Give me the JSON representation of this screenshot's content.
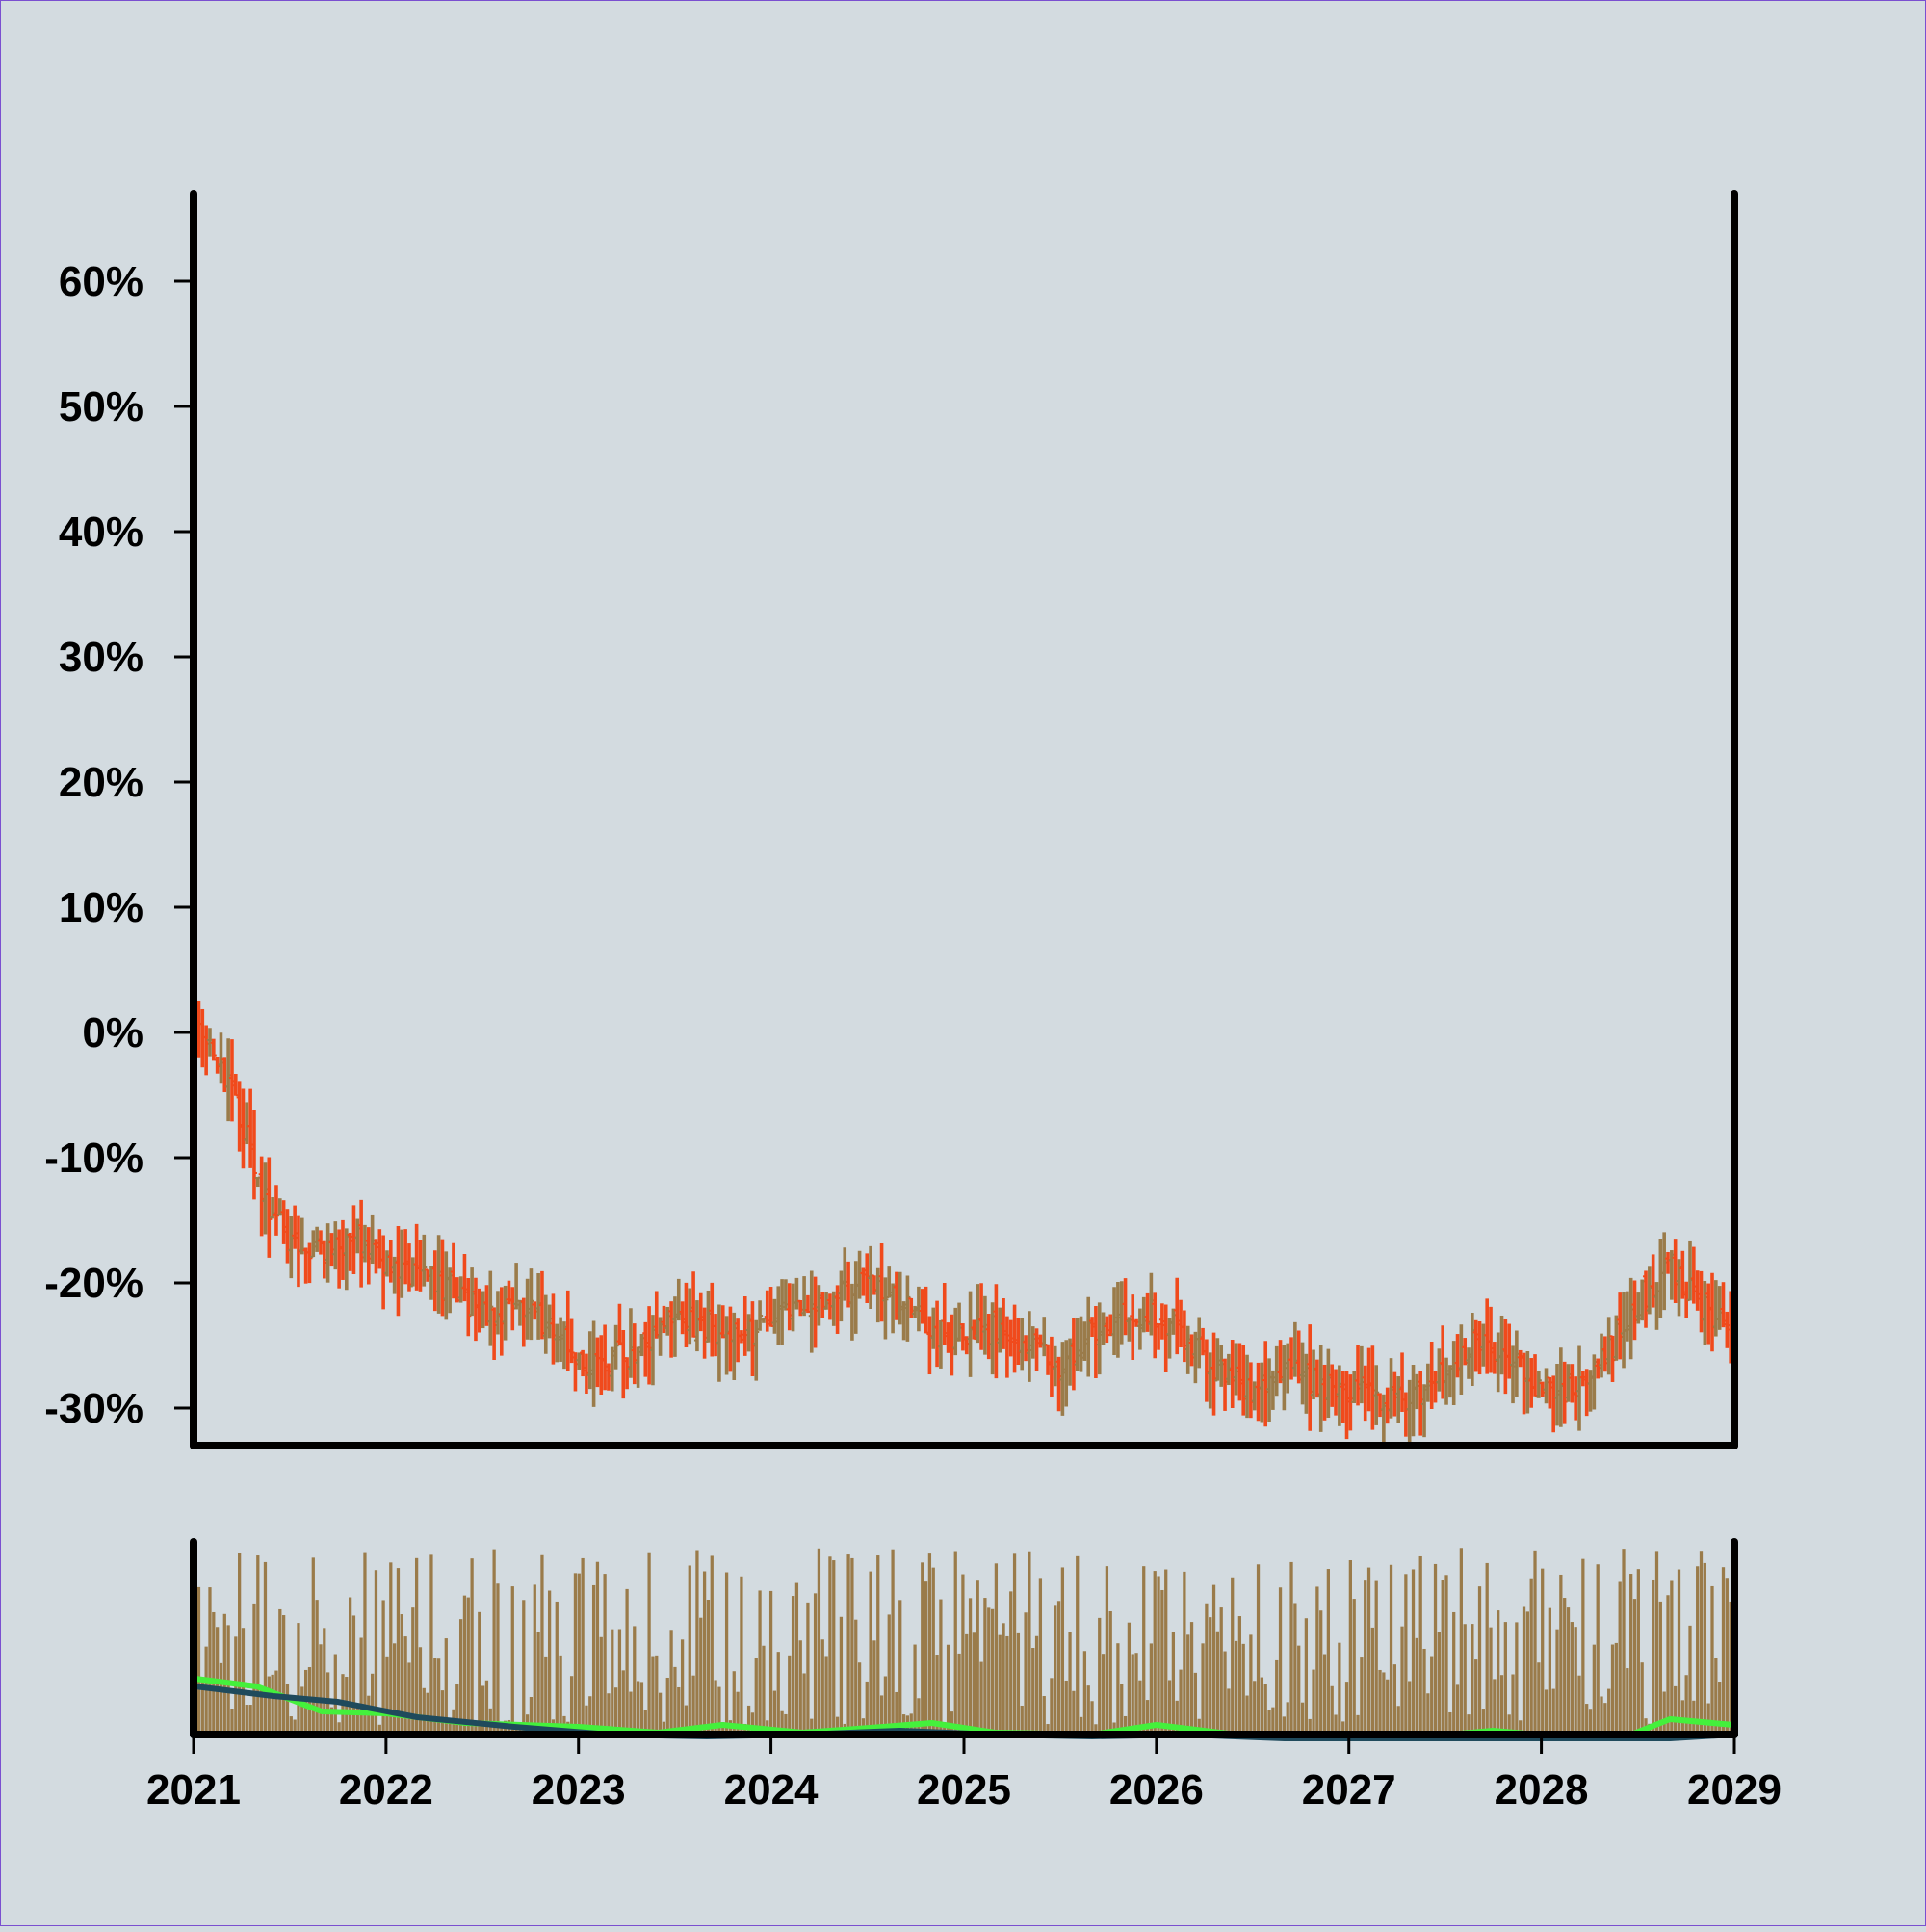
{
  "colors": {
    "background": "#d3dbe0",
    "frame": "#7a4fd0",
    "axis": "#000000",
    "ohlc_up": "#9a7b4a",
    "ohlc_down": "#f04a1c",
    "volume": "#9a7b4a",
    "ma_fast": "#44f03c",
    "ma_slow": "#1f4a5c"
  },
  "chart_data": [
    {
      "type": "ohlc",
      "x_type": "date",
      "y_unit": "%",
      "y_ticks": [
        "60%",
        "50%",
        "40%",
        "30%",
        "20%",
        "10%",
        "0%",
        "-10%",
        "-20%",
        "-30%"
      ],
      "y_tick_values": [
        60,
        50,
        40,
        30,
        20,
        10,
        0,
        -10,
        -20,
        -30
      ],
      "ylim": [
        -33,
        67
      ],
      "xlim": [
        "2021-01-01",
        "2029-01-01"
      ],
      "grid": false,
      "frequency": "weekly",
      "start": "2021-01-04",
      "trend": [
        [
          "2021-01-04",
          0.5
        ],
        [
          "2021-02-15",
          -2
        ],
        [
          "2021-04-01",
          -7
        ],
        [
          "2021-05-15",
          -13
        ],
        [
          "2021-07-01",
          -17
        ],
        [
          "2021-09-01",
          -17.5
        ],
        [
          "2021-11-01",
          -16.5
        ],
        [
          "2022-01-01",
          -18.5
        ],
        [
          "2022-03-01",
          -19.5
        ],
        [
          "2022-05-01",
          -20.5
        ],
        [
          "2022-07-01",
          -22.5
        ],
        [
          "2022-09-01",
          -22
        ],
        [
          "2022-11-01",
          -23
        ],
        [
          "2023-01-01",
          -26
        ],
        [
          "2023-03-01",
          -26.5
        ],
        [
          "2023-05-01",
          -25
        ],
        [
          "2023-07-01",
          -22.5
        ],
        [
          "2023-09-01",
          -23.5
        ],
        [
          "2023-11-01",
          -24.5
        ],
        [
          "2024-01-01",
          -23
        ],
        [
          "2024-03-01",
          -22
        ],
        [
          "2024-05-01",
          -21
        ],
        [
          "2024-07-01",
          -20
        ],
        [
          "2024-09-01",
          -21.5
        ],
        [
          "2024-11-01",
          -24
        ],
        [
          "2025-01-01",
          -24.5
        ],
        [
          "2025-03-01",
          -23.5
        ],
        [
          "2025-05-01",
          -25
        ],
        [
          "2025-07-01",
          -26.5
        ],
        [
          "2025-09-01",
          -24
        ],
        [
          "2025-11-01",
          -22.5
        ],
        [
          "2026-01-01",
          -22.5
        ],
        [
          "2026-03-01",
          -24.5
        ],
        [
          "2026-05-01",
          -27
        ],
        [
          "2026-07-01",
          -28.5
        ],
        [
          "2026-09-01",
          -27
        ],
        [
          "2026-11-01",
          -28
        ],
        [
          "2027-01-01",
          -28.5
        ],
        [
          "2027-03-01",
          -29.5
        ],
        [
          "2027-05-01",
          -29
        ],
        [
          "2027-07-01",
          -27
        ],
        [
          "2027-09-01",
          -24.5
        ],
        [
          "2027-11-01",
          -25.5
        ],
        [
          "2028-01-01",
          -28.5
        ],
        [
          "2028-03-01",
          -28.5
        ],
        [
          "2028-05-01",
          -26
        ],
        [
          "2028-07-01",
          -21.5
        ],
        [
          "2028-09-01",
          -18.5
        ],
        [
          "2028-11-01",
          -22
        ],
        [
          "2028-12-31",
          -24.5
        ]
      ]
    },
    {
      "type": "bar",
      "subtype": "volume",
      "x_type": "date",
      "xlim": [
        "2021-01-01",
        "2029-01-01"
      ],
      "x_ticks": [
        "2021",
        "2022",
        "2023",
        "2024",
        "2025",
        "2026",
        "2027",
        "2028",
        "2029"
      ],
      "x_tick_values": [
        "2021-01-01",
        "2022-01-01",
        "2023-01-01",
        "2024-01-01",
        "2025-01-01",
        "2026-01-01",
        "2027-01-01",
        "2028-01-01",
        "2029-01-01"
      ],
      "ylim": [
        0,
        1
      ],
      "volume_range": [
        0.05,
        0.97
      ],
      "moving_averages": [
        {
          "color_key": "ma_fast",
          "points": [
            [
              "2021-01-04",
              0.29
            ],
            [
              "2021-05-01",
              0.25
            ],
            [
              "2021-09-01",
              0.12
            ],
            [
              "2022-01-01",
              0.11
            ],
            [
              "2022-06-01",
              0.06
            ],
            [
              "2023-01-01",
              0.04
            ],
            [
              "2023-06-01",
              0.01
            ],
            [
              "2023-10-01",
              0.05
            ],
            [
              "2024-03-01",
              0.01
            ],
            [
              "2024-08-01",
              0.04
            ],
            [
              "2024-11-01",
              0.06
            ],
            [
              "2025-03-01",
              0.01
            ],
            [
              "2025-09-01",
              0.0
            ],
            [
              "2026-01-01",
              0.05
            ],
            [
              "2026-06-01",
              0.0
            ],
            [
              "2027-01-01",
              0.0
            ],
            [
              "2027-06-01",
              -0.01
            ],
            [
              "2027-10-01",
              0.02
            ],
            [
              "2028-02-01",
              -0.01
            ],
            [
              "2028-06-01",
              -0.02
            ],
            [
              "2028-09-01",
              0.08
            ],
            [
              "2028-12-31",
              0.05
            ]
          ]
        },
        {
          "color_key": "ma_slow",
          "points": [
            [
              "2021-01-04",
              0.25
            ],
            [
              "2021-06-01",
              0.2
            ],
            [
              "2021-10-01",
              0.17
            ],
            [
              "2022-03-01",
              0.09
            ],
            [
              "2022-09-01",
              0.04
            ],
            [
              "2023-03-01",
              0.0
            ],
            [
              "2023-09-01",
              -0.01
            ],
            [
              "2024-03-01",
              0.0
            ],
            [
              "2024-09-01",
              0.02
            ],
            [
              "2025-03-01",
              0.0
            ],
            [
              "2025-09-01",
              -0.01
            ],
            [
              "2026-03-01",
              0.0
            ],
            [
              "2026-09-01",
              -0.02
            ],
            [
              "2027-03-01",
              -0.03
            ],
            [
              "2027-09-01",
              -0.03
            ],
            [
              "2028-03-01",
              -0.03
            ],
            [
              "2028-09-01",
              -0.02
            ],
            [
              "2028-12-31",
              0.0
            ]
          ]
        }
      ]
    }
  ]
}
